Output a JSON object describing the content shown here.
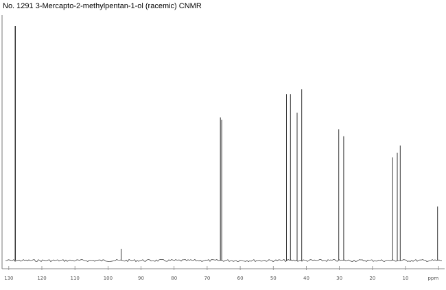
{
  "title": "No. 1291 3-Mercapto-2-methylpentan-1-ol (racemic) CNMR",
  "chart_data": {
    "type": "line",
    "xlabel": "ppm",
    "xlim": [
      131,
      -1
    ],
    "x_reversed": true,
    "x_ticks": [
      130,
      120,
      110,
      100,
      90,
      80,
      70,
      60,
      50,
      40,
      30,
      20,
      10,
      0
    ],
    "x_tick_labels": [
      "130",
      "120",
      "110",
      "100",
      "90",
      "80",
      "70",
      "60",
      "50",
      "40",
      "30",
      "20",
      "10",
      "ppm"
    ],
    "ylim": [
      0,
      100
    ],
    "peaks": [
      {
        "ppm": 128.1,
        "intensity": 100
      },
      {
        "ppm": 128.0,
        "intensity": 100
      },
      {
        "ppm": 96.0,
        "intensity": 5
      },
      {
        "ppm": 66.0,
        "intensity": 61
      },
      {
        "ppm": 65.6,
        "intensity": 60
      },
      {
        "ppm": 46.0,
        "intensity": 71
      },
      {
        "ppm": 44.8,
        "intensity": 71
      },
      {
        "ppm": 42.8,
        "intensity": 63
      },
      {
        "ppm": 41.4,
        "intensity": 73
      },
      {
        "ppm": 30.2,
        "intensity": 56
      },
      {
        "ppm": 28.7,
        "intensity": 53
      },
      {
        "ppm": 13.9,
        "intensity": 44
      },
      {
        "ppm": 12.5,
        "intensity": 46
      },
      {
        "ppm": 11.6,
        "intensity": 49
      },
      {
        "ppm": 0.3,
        "intensity": 23
      }
    ]
  }
}
